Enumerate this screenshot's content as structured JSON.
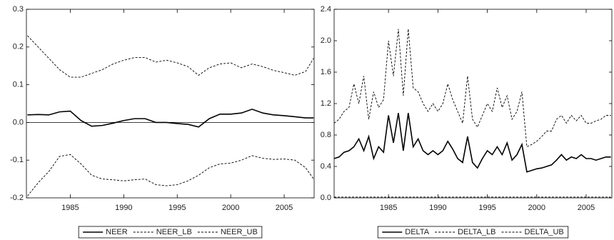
{
  "chart_data": [
    {
      "type": "line",
      "x": [
        1981,
        1982,
        1983,
        1984,
        1985,
        1986,
        1987,
        1988,
        1989,
        1990,
        1991,
        1992,
        1993,
        1994,
        1995,
        1996,
        1997,
        1998,
        1999,
        2000,
        2001,
        2002,
        2003,
        2004,
        2005,
        2006,
        2007,
        2007.75
      ],
      "series": [
        {
          "name": "NEER",
          "color": "#000000",
          "line_style": "solid",
          "values": [
            0.02,
            0.021,
            0.02,
            0.028,
            0.03,
            0.005,
            -0.01,
            -0.008,
            -0.002,
            0.005,
            0.01,
            0.01,
            0.0,
            0.0,
            -0.003,
            -0.005,
            -0.012,
            0.01,
            0.022,
            0.022,
            0.025,
            0.035,
            0.025,
            0.02,
            0.018,
            0.015,
            0.012,
            0.012
          ]
        },
        {
          "name": "NEER_LB",
          "color": "#000000",
          "line_style": "dashed",
          "values": [
            -0.195,
            -0.16,
            -0.13,
            -0.09,
            -0.085,
            -0.11,
            -0.14,
            -0.15,
            -0.152,
            -0.155,
            -0.152,
            -0.15,
            -0.165,
            -0.168,
            -0.165,
            -0.155,
            -0.14,
            -0.12,
            -0.11,
            -0.108,
            -0.1,
            -0.088,
            -0.095,
            -0.098,
            -0.097,
            -0.1,
            -0.12,
            -0.15
          ]
        },
        {
          "name": "NEER_UB",
          "color": "#000000",
          "line_style": "dashed",
          "values": [
            0.23,
            0.2,
            0.17,
            0.14,
            0.12,
            0.12,
            0.13,
            0.14,
            0.155,
            0.165,
            0.172,
            0.172,
            0.16,
            0.165,
            0.158,
            0.148,
            0.125,
            0.145,
            0.155,
            0.158,
            0.145,
            0.155,
            0.148,
            0.138,
            0.132,
            0.125,
            0.135,
            0.17
          ]
        }
      ],
      "xlim": [
        1980.9,
        2007.8
      ],
      "xticks": [
        1985,
        1990,
        1995,
        2000,
        2005
      ],
      "ylim": [
        -0.2,
        0.3
      ],
      "yticks": [
        -0.2,
        -0.1,
        {
          "value": 0,
          "label": "0.0"
        },
        0.1,
        0.2,
        0.3
      ],
      "reference_line": 0,
      "legend": "bottom"
    },
    {
      "type": "line",
      "x": [
        1979.5,
        1980,
        1980.5,
        1981,
        1981.5,
        1982,
        1982.5,
        1983,
        1983.5,
        1984,
        1984.5,
        1985,
        1985.5,
        1986,
        1986.5,
        1987,
        1987.5,
        1988,
        1988.5,
        1989,
        1989.5,
        1990,
        1990.5,
        1991,
        1991.5,
        1992,
        1992.5,
        1993,
        1993.5,
        1994,
        1994.5,
        1995,
        1995.5,
        1996,
        1996.5,
        1997,
        1997.5,
        1998,
        1998.5,
        1999,
        1999.5,
        2000,
        2000.5,
        2001,
        2001.5,
        2002,
        2002.5,
        2003,
        2003.5,
        2004,
        2004.5,
        2005,
        2005.5,
        2006,
        2006.5,
        2007,
        2007.5
      ],
      "series": [
        {
          "name": "DELTA",
          "color": "#000000",
          "line_style": "solid",
          "values": [
            0.5,
            0.52,
            0.58,
            0.6,
            0.65,
            0.75,
            0.6,
            0.78,
            0.5,
            0.65,
            0.58,
            1.05,
            0.7,
            1.08,
            0.6,
            1.08,
            0.65,
            0.75,
            0.6,
            0.55,
            0.6,
            0.55,
            0.6,
            0.72,
            0.62,
            0.5,
            0.45,
            0.78,
            0.45,
            0.38,
            0.5,
            0.6,
            0.55,
            0.65,
            0.55,
            0.7,
            0.48,
            0.55,
            0.68,
            0.33,
            0.35,
            0.37,
            0.38,
            0.4,
            0.42,
            0.48,
            0.55,
            0.48,
            0.52,
            0.5,
            0.55,
            0.5,
            0.5,
            0.48,
            0.5,
            0.52,
            0.52
          ]
        },
        {
          "name": "DELTA_LB",
          "color": "#000000",
          "line_style": "dashed",
          "values": [
            0.01,
            0.01,
            0.01,
            0.01,
            0.01,
            0.01,
            0.01,
            0.01,
            0.01,
            0.01,
            0.01,
            0.01,
            0.01,
            0.01,
            0.01,
            0.01,
            0.01,
            0.01,
            0.01,
            0.01,
            0.01,
            0.01,
            0.01,
            0.01,
            0.01,
            0.01,
            0.01,
            0.01,
            0.01,
            0.01,
            0.01,
            0.01,
            0.01,
            0.01,
            0.01,
            0.01,
            0.01,
            0.01,
            0.01,
            0.01,
            0.01,
            0.01,
            0.01,
            0.01,
            0.01,
            0.01,
            0.01,
            0.01,
            0.01,
            0.01,
            0.01,
            0.01,
            0.01,
            0.01,
            0.01,
            0.01,
            0.01
          ]
        },
        {
          "name": "DELTA_UB",
          "color": "#000000",
          "line_style": "dashed",
          "values": [
            0.95,
            1.0,
            1.1,
            1.15,
            1.45,
            1.2,
            1.55,
            1.0,
            1.35,
            1.15,
            1.25,
            2.0,
            1.55,
            2.15,
            1.3,
            2.15,
            1.4,
            1.35,
            1.2,
            1.1,
            1.2,
            1.1,
            1.2,
            1.45,
            1.25,
            1.1,
            0.95,
            1.55,
            1.0,
            0.9,
            1.05,
            1.2,
            1.1,
            1.4,
            1.15,
            1.3,
            1.0,
            1.1,
            1.35,
            0.65,
            0.68,
            0.72,
            0.78,
            0.85,
            0.85,
            1.0,
            1.05,
            0.95,
            1.05,
            0.98,
            1.05,
            0.95,
            0.95,
            0.98,
            1.0,
            1.05,
            1.05
          ]
        }
      ],
      "xlim": [
        1979.5,
        2007.6
      ],
      "xticks": [
        1985,
        1990,
        1995,
        2000,
        2005
      ],
      "ylim": [
        0,
        2.4
      ],
      "yticks": [
        {
          "value": 0,
          "label": "0.0"
        },
        0.4,
        0.8,
        1.2,
        1.6,
        {
          "value": 2,
          "label": "2.0"
        },
        2.4
      ],
      "legend": "bottom"
    }
  ]
}
